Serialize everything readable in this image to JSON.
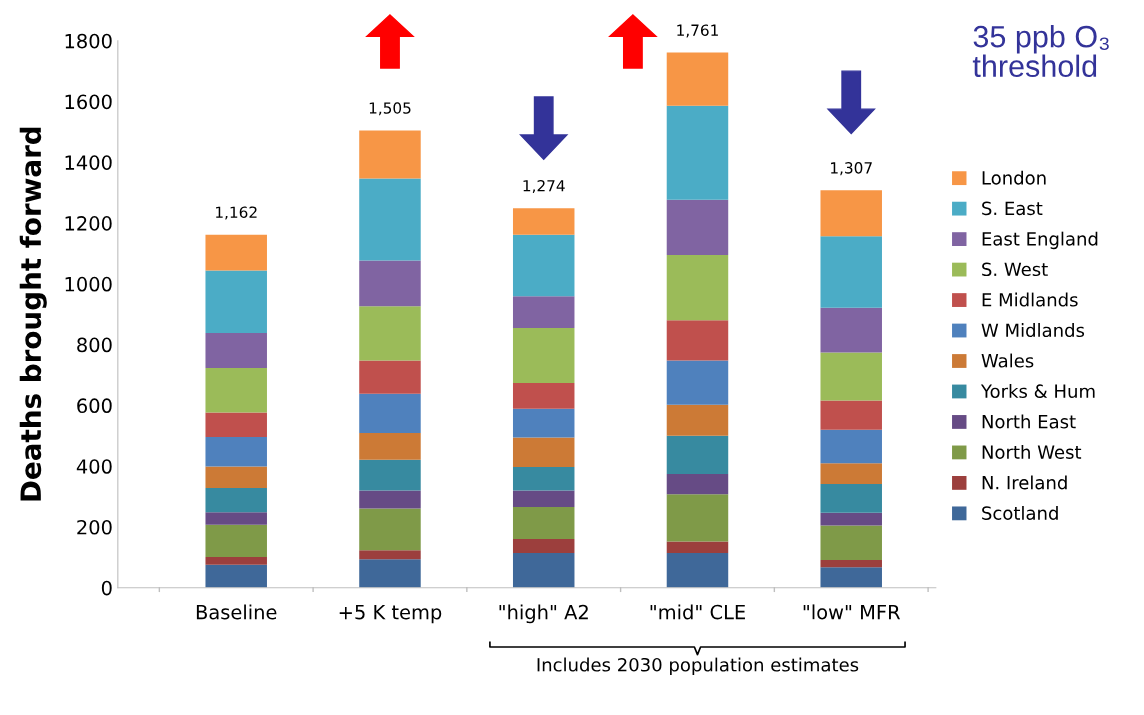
{
  "chart_data": {
    "type": "bar",
    "stacked": true,
    "ylabel": "Deaths brought forward",
    "categories": [
      "Baseline",
      "+5 K temp",
      "\"high\" A2",
      "\"mid\" CLE",
      "\"low\" MFR"
    ],
    "series": [
      {
        "name": "Scotland",
        "color": "#3f6899",
        "values": [
          76,
          94,
          114,
          114,
          67
        ]
      },
      {
        "name": "N. Ireland",
        "color": "#9c3f3d",
        "values": [
          25,
          29,
          46,
          38,
          24
        ]
      },
      {
        "name": "North West",
        "color": "#7f9a48",
        "values": [
          106,
          138,
          106,
          156,
          114
        ]
      },
      {
        "name": "North East",
        "color": "#664b85",
        "values": [
          41,
          59,
          54,
          66,
          42
        ]
      },
      {
        "name": "Yorks & Hum",
        "color": "#378aa0",
        "values": [
          80,
          101,
          77,
          126,
          94
        ]
      },
      {
        "name": "Wales",
        "color": "#cc7a36",
        "values": [
          71,
          88,
          97,
          102,
          69
        ]
      },
      {
        "name": "W Midlands",
        "color": "#4f81bd",
        "values": [
          97,
          129,
          95,
          146,
          110
        ]
      },
      {
        "name": "E Midlands",
        "color": "#c0504d",
        "values": [
          81,
          110,
          85,
          132,
          96
        ]
      },
      {
        "name": "S. West",
        "color": "#9bbb59",
        "values": [
          146,
          178,
          181,
          215,
          158
        ]
      },
      {
        "name": "East England",
        "color": "#8064a2",
        "values": [
          115,
          151,
          104,
          182,
          147
        ]
      },
      {
        "name": "S. East",
        "color": "#4bacc6",
        "values": [
          206,
          270,
          203,
          309,
          236
        ]
      },
      {
        "name": "London",
        "color": "#f79646",
        "values": [
          118,
          158,
          87,
          175,
          151
        ]
      }
    ],
    "totals": [
      "1,162",
      "1,505",
      null,
      "1,761",
      "1,307"
    ],
    "ylim": [
      0,
      1800
    ],
    "yticks": [
      0,
      200,
      400,
      600,
      800,
      1000,
      1200,
      1400,
      1600,
      1800
    ],
    "grid": false,
    "legend": "right",
    "annotations": [
      "35 ppb O₃ threshold",
      "Includes 2030 population estimates",
      {
        "text": "1,274",
        "x": "\"high\" A2",
        "y": 1249
      }
    ]
  }
}
